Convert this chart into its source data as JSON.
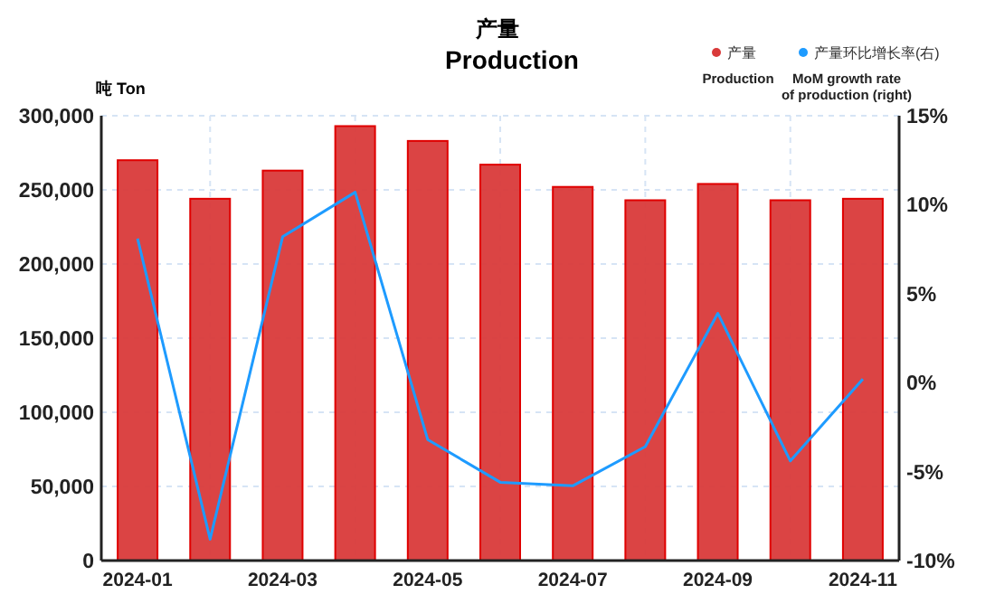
{
  "chart_data": {
    "type": "bar",
    "title": "产量",
    "subtitle": "Production",
    "ylabel": "吨 Ton",
    "categories": [
      "2024-01",
      null,
      "2024-03",
      null,
      "2024-05",
      null,
      "2024-07",
      null,
      "2024-09",
      null,
      "2024-11"
    ],
    "series": [
      {
        "name": "产量\nProduction",
        "color": "#d93a3a",
        "values": [
          270000,
          244000,
          263000,
          293000,
          283000,
          267000,
          252000,
          243000,
          254000,
          243000,
          244000
        ]
      },
      {
        "name": "产量环比增长率(右)\nMoM growth rate\nof production (right)",
        "type": "line",
        "axis": "y2",
        "color": "#1e9bff",
        "values": [
          8.1,
          -8.8,
          8.2,
          10.7,
          -3.2,
          -5.6,
          -5.8,
          -3.6,
          3.9,
          -4.4,
          0.2
        ]
      }
    ],
    "ylim": [
      0,
      300000
    ],
    "yticks": [
      0,
      {
        "value": 50000,
        "label": "50,000"
      },
      {
        "value": 100000,
        "label": "100,000"
      },
      {
        "value": 150000,
        "label": "150,000"
      },
      {
        "value": 200000,
        "label": "200,000"
      },
      {
        "value": 250000,
        "label": "250,000"
      },
      {
        "value": 300000,
        "label": "300,000"
      }
    ],
    "y2lim": [
      -10,
      15
    ],
    "y2ticks": [
      {
        "value": -10,
        "label": "-10%"
      },
      {
        "value": -5,
        "label": "-5%"
      },
      {
        "value": 0,
        "label": "0%"
      },
      {
        "value": 5,
        "label": "5%"
      },
      {
        "value": 10,
        "label": "10%"
      },
      {
        "value": 15,
        "label": "15%"
      }
    ],
    "grid": true,
    "legend": "top right",
    "marker": "none",
    "line_style": "solid"
  }
}
